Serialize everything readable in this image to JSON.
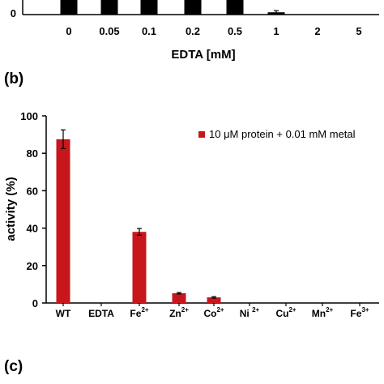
{
  "panel_labels": {
    "b": "(b)",
    "c": "(c)"
  },
  "chart_data": [
    {
      "panel": "",
      "type": "bar",
      "xlabel": "EDTA [mM]",
      "categories": [
        "0",
        "0.05",
        "0.1",
        "0.2",
        "0.5",
        "1",
        "2",
        "5"
      ],
      "visible_y_tick": "0",
      "values": [
        null,
        null,
        null,
        null,
        5,
        0.7,
        0,
        0
      ],
      "errors": [
        null,
        null,
        null,
        null,
        3,
        0.5,
        0,
        0
      ],
      "bar_color": "#000000",
      "partially_cropped": true
    },
    {
      "panel": "(b)",
      "type": "bar",
      "xlabel": "",
      "ylabel": "activity (%)",
      "ylim": [
        0,
        100
      ],
      "yticks": [
        "0",
        "20",
        "40",
        "60",
        "80",
        "100"
      ],
      "categories": [
        {
          "base": "WT",
          "sup": ""
        },
        {
          "base": "EDTA",
          "sup": ""
        },
        {
          "base": "Fe",
          "sup": "2+"
        },
        {
          "base": "Zn",
          "sup": "2+"
        },
        {
          "base": "Co",
          "sup": "2+"
        },
        {
          "base": "Ni ",
          "sup": "2+"
        },
        {
          "base": "Cu",
          "sup": "2+"
        },
        {
          "base": "Mn",
          "sup": "2+"
        },
        {
          "base": "Fe",
          "sup": "3+"
        }
      ],
      "series": [
        {
          "name": "10 μM protein + 0.01 mM metal",
          "values": [
            87.5,
            0,
            38,
            5.2,
            3,
            0,
            0,
            0,
            0
          ],
          "errors": [
            5,
            0,
            1.8,
            0.4,
            0.4,
            0,
            0,
            0,
            0
          ]
        }
      ],
      "bar_color": "#c8161d",
      "legend_position": "top-right",
      "grid": false
    }
  ]
}
